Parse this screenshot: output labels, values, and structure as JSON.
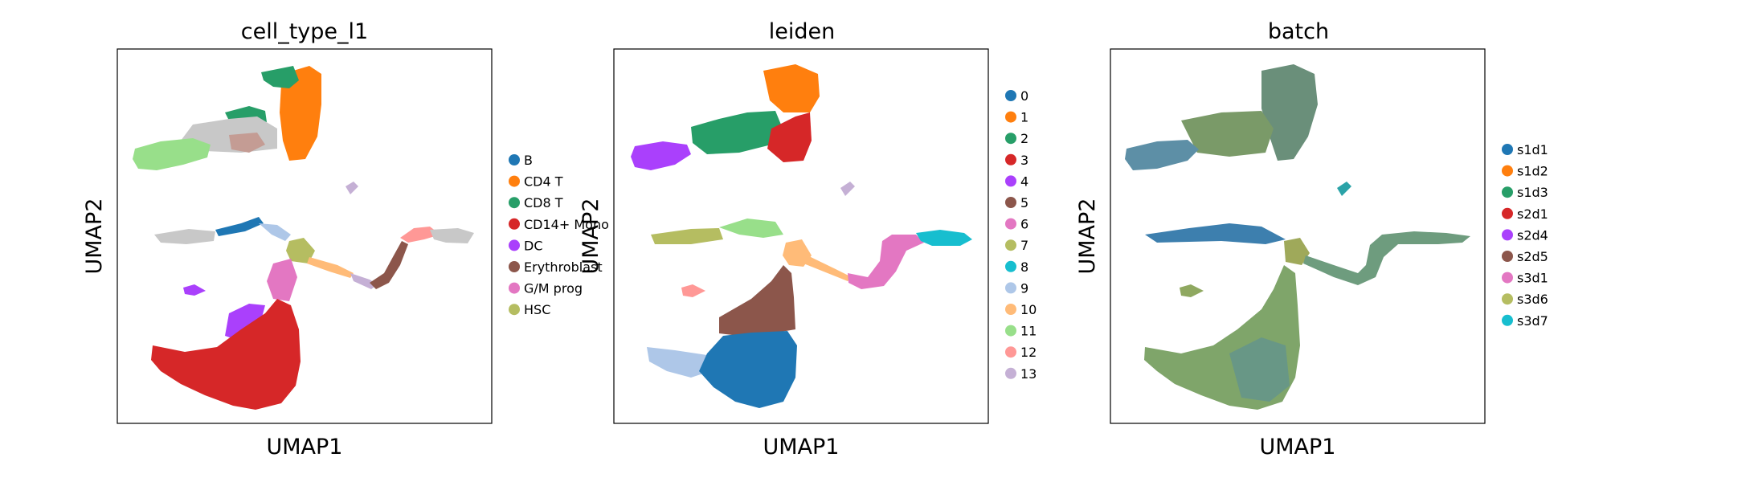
{
  "chart_data": [
    {
      "type": "scatter",
      "title": "cell_type_l1",
      "xlabel": "UMAP1",
      "ylabel": "UMAP2",
      "grid": false,
      "ticks": false,
      "legend_position": "right",
      "legend": [
        {
          "label": "B",
          "color": "#1f77b4"
        },
        {
          "label": "CD4 T",
          "color": "#ff7f0e"
        },
        {
          "label": "CD8 T",
          "color": "#279e68"
        },
        {
          "label": "CD14+ Mono",
          "color": "#d62728"
        },
        {
          "label": "DC",
          "color": "#aa40fc"
        },
        {
          "label": "Erythroblast",
          "color": "#8c564b"
        },
        {
          "label": "G/M prog",
          "color": "#e377c2"
        },
        {
          "label": "HSC",
          "color": "#b5bd61"
        }
      ]
    },
    {
      "type": "scatter",
      "title": "leiden",
      "xlabel": "UMAP1",
      "ylabel": "UMAP2",
      "grid": false,
      "ticks": false,
      "legend_position": "right",
      "legend": [
        {
          "label": "0",
          "color": "#1f77b4"
        },
        {
          "label": "1",
          "color": "#ff7f0e"
        },
        {
          "label": "2",
          "color": "#279e68"
        },
        {
          "label": "3",
          "color": "#d62728"
        },
        {
          "label": "4",
          "color": "#aa40fc"
        },
        {
          "label": "5",
          "color": "#8c564b"
        },
        {
          "label": "6",
          "color": "#e377c2"
        },
        {
          "label": "7",
          "color": "#b5bd61"
        },
        {
          "label": "8",
          "color": "#17becf"
        },
        {
          "label": "9",
          "color": "#aec7e8"
        },
        {
          "label": "10",
          "color": "#ffbb78"
        },
        {
          "label": "11",
          "color": "#98df8a"
        },
        {
          "label": "12",
          "color": "#ff9896"
        },
        {
          "label": "13",
          "color": "#c5b0d5"
        }
      ]
    },
    {
      "type": "scatter",
      "title": "batch",
      "xlabel": "UMAP1",
      "ylabel": "UMAP2",
      "grid": false,
      "ticks": false,
      "legend_position": "right",
      "legend": [
        {
          "label": "s1d1",
          "color": "#1f77b4"
        },
        {
          "label": "s1d2",
          "color": "#ff7f0e"
        },
        {
          "label": "s1d3",
          "color": "#279e68"
        },
        {
          "label": "s2d1",
          "color": "#d62728"
        },
        {
          "label": "s2d4",
          "color": "#aa40fc"
        },
        {
          "label": "s2d5",
          "color": "#8c564b"
        },
        {
          "label": "s3d1",
          "color": "#e377c2"
        },
        {
          "label": "s3d6",
          "color": "#b5bd61"
        },
        {
          "label": "s3d7",
          "color": "#17becf"
        }
      ]
    }
  ],
  "unlabeled_color": "#d3d3d3"
}
